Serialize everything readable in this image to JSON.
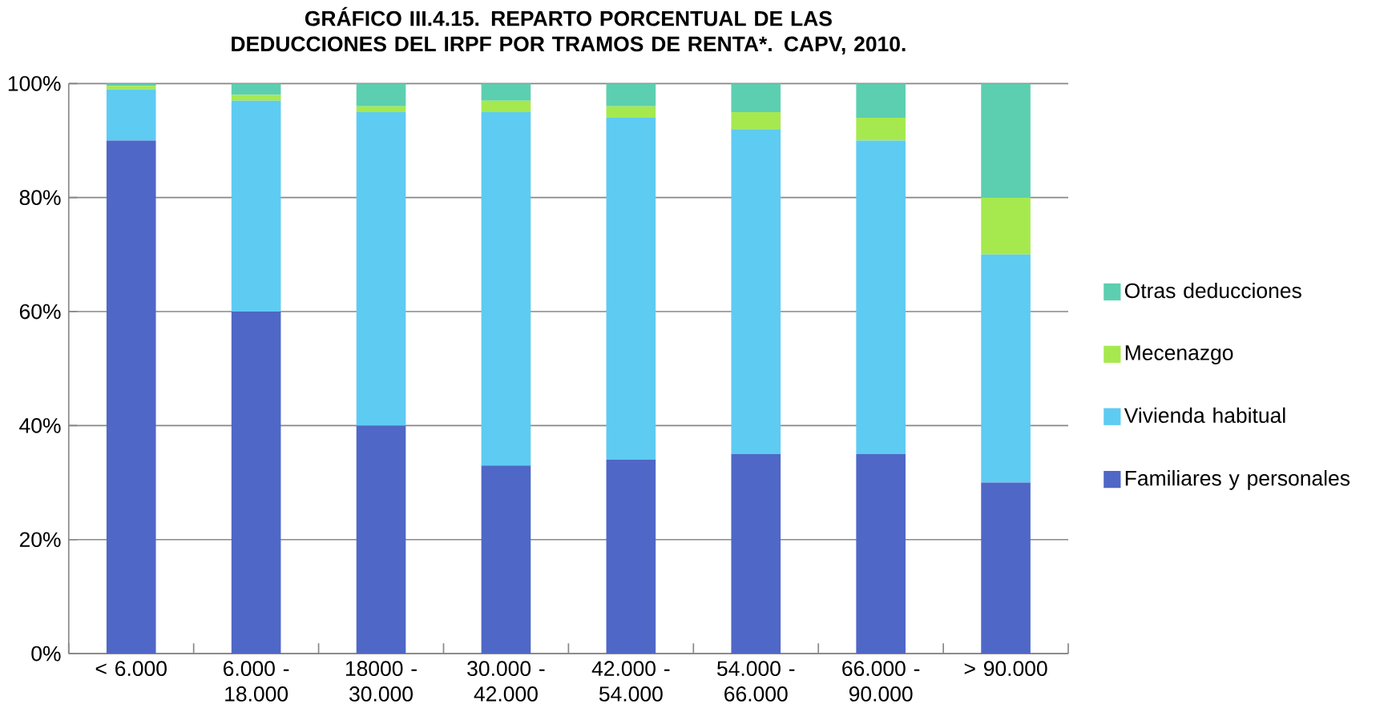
{
  "chart_data": {
    "type": "bar",
    "stacked": true,
    "title": "GRÁFICO III.4.15. REPARTO PORCENTUAL DE LAS DEDUCCIONES DEL IRPF POR TRAMOS DE RENTA*. CAPV, 2010.",
    "categories": [
      "< 6.000",
      "6.000 - 18.000",
      "18000 - 30.000",
      "30.000 - 42.000",
      "42.000 - 54.000",
      "54.000 - 66.000",
      "66.000 - 90.000",
      "> 90.000"
    ],
    "series": [
      {
        "name": "Familiares y personales",
        "color": "#4f67c6",
        "values": [
          90,
          60,
          40,
          33,
          34,
          35,
          35,
          30
        ]
      },
      {
        "name": "Vivienda habitual",
        "color": "#5ecbf2",
        "values": [
          9,
          37,
          55,
          62,
          60,
          57,
          55,
          40
        ]
      },
      {
        "name": "Mecenazgo",
        "color": "#a6e94f",
        "values": [
          0.6,
          1,
          1,
          2,
          2,
          3,
          4,
          10
        ]
      },
      {
        "name": "Otras deducciones",
        "color": "#5ccfb0",
        "values": [
          0.4,
          2,
          4,
          3,
          4,
          5,
          6,
          20
        ]
      }
    ],
    "ylim": [
      0,
      100
    ],
    "yticks": [
      {
        "value": 0,
        "label": "0%"
      },
      {
        "value": 20,
        "label": "20%"
      },
      {
        "value": 40,
        "label": "40%"
      },
      {
        "value": 60,
        "label": "60%"
      },
      {
        "value": 80,
        "label": "80%"
      },
      {
        "value": 100,
        "label": "100%"
      }
    ],
    "grid": "y",
    "legend": "right"
  }
}
